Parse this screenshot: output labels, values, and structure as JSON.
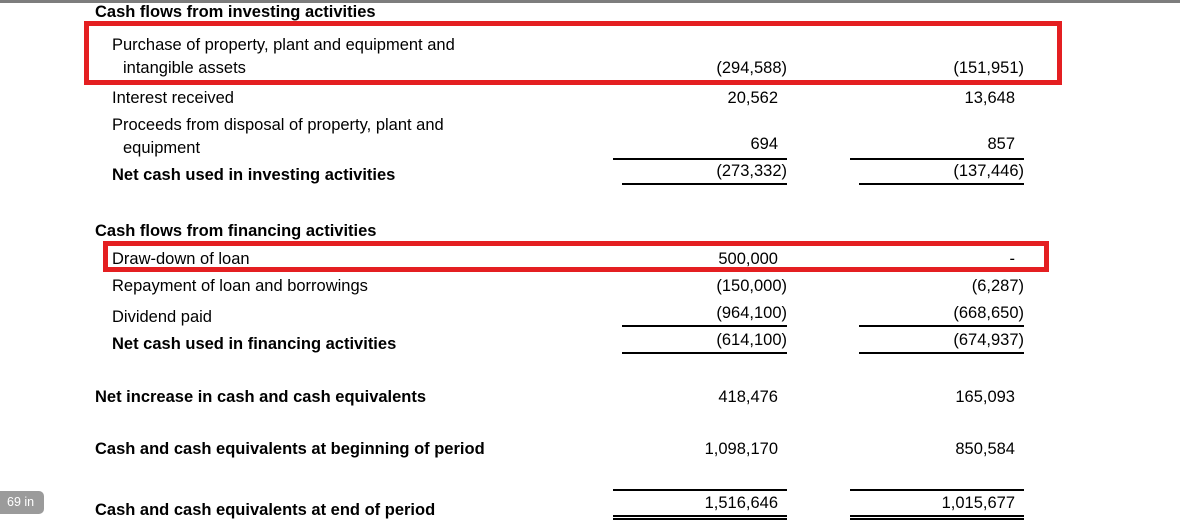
{
  "badge": {
    "text": "69 in"
  },
  "highlight_color": "#e41f21",
  "investing": {
    "heading": "Cash flows from investing activities",
    "purchase": {
      "l1": "Purchase of property, plant and equipment and",
      "l2": "intangible assets",
      "v1": "(294,588)",
      "v2": "(151,951)"
    },
    "interest": {
      "l1": "Interest received",
      "v1": "20,562",
      "v2": "13,648"
    },
    "proceeds": {
      "l1": "Proceeds from disposal of property, plant and",
      "l2": "equipment",
      "v1": "694",
      "v2": "857"
    },
    "net": {
      "l1": "Net cash used in investing activities",
      "v1": "(273,332)",
      "v2": "(137,446)"
    }
  },
  "financing": {
    "heading": "Cash flows from financing activities",
    "drawdown": {
      "l1": "Draw-down of loan",
      "v1": "500,000",
      "v2": "-"
    },
    "repayment": {
      "l1": "Repayment of loan and borrowings",
      "v1": "(150,000)",
      "v2": "(6,287)"
    },
    "dividend": {
      "l1": "Dividend paid",
      "v1": "(964,100)",
      "v2": "(668,650)"
    },
    "net": {
      "l1": "Net cash used in financing activities",
      "v1": "(614,100)",
      "v2": "(674,937)"
    }
  },
  "summary": {
    "net_increase": {
      "label": "Net increase in cash and cash equivalents",
      "v1": "418,476",
      "v2": "165,093"
    },
    "beginning": {
      "label": "Cash and cash equivalents at beginning of period",
      "v1": "1,098,170",
      "v2": "850,584"
    },
    "end": {
      "label": "Cash and cash equivalents at end of period",
      "v1": "1,516,646",
      "v2": "1,015,677"
    }
  }
}
